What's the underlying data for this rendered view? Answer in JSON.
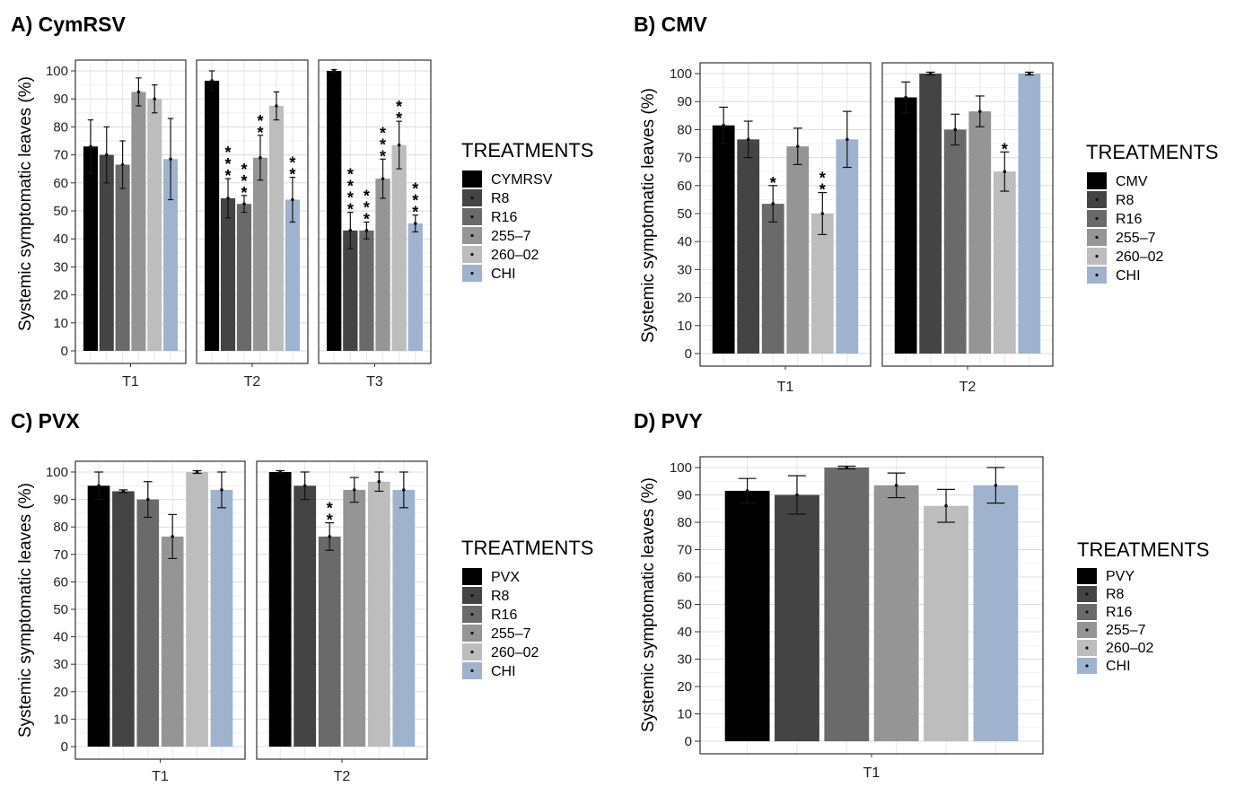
{
  "chart_data": [
    {
      "type": "bar",
      "panel_title": "A) CymRSV",
      "ylabel": "Systemic symptomatic leaves (%)",
      "ylim": [
        0,
        100
      ],
      "yticks": [
        0,
        10,
        20,
        30,
        40,
        50,
        60,
        70,
        80,
        90,
        100
      ],
      "legend_title": "TREATMENTS",
      "legend_placement": "right",
      "grid": true,
      "categories": [
        "CYMRSV",
        "R8",
        "R16",
        "255–7",
        "260–02",
        "CHI"
      ],
      "colors": [
        "#000000",
        "#444444",
        "#6a6a6a",
        "#959595",
        "#bdbdbd",
        "#9fb3cf"
      ],
      "facets": [
        {
          "label": "T1",
          "values": [
            73,
            70,
            66.5,
            92.5,
            90,
            68.5
          ],
          "errors": [
            9.5,
            10,
            8.5,
            5,
            5,
            14.5
          ],
          "stars": [
            0,
            0,
            0,
            0,
            0,
            0
          ]
        },
        {
          "label": "T2",
          "values": [
            96.5,
            54.5,
            52.5,
            69,
            87.5,
            54
          ],
          "errors": [
            3.5,
            7,
            3,
            8,
            5,
            8
          ],
          "stars": [
            0,
            3,
            3,
            2,
            0,
            2
          ]
        },
        {
          "label": "T3",
          "values": [
            100,
            43,
            43,
            61.5,
            73.5,
            45.5
          ],
          "errors": [
            0.5,
            6.5,
            3,
            7,
            8.5,
            3
          ],
          "stars": [
            0,
            4,
            3,
            3,
            2,
            3
          ]
        }
      ]
    },
    {
      "type": "bar",
      "panel_title": "B) CMV",
      "ylabel": "Systemic symptomatic leaves (%)",
      "ylim": [
        0,
        100
      ],
      "yticks": [
        0,
        10,
        20,
        30,
        40,
        50,
        60,
        70,
        80,
        90,
        100
      ],
      "legend_title": "TREATMENTS",
      "legend_placement": "right",
      "grid": true,
      "categories": [
        "CMV",
        "R8",
        "R16",
        "255–7",
        "260–02",
        "CHI"
      ],
      "colors": [
        "#000000",
        "#444444",
        "#6a6a6a",
        "#959595",
        "#bdbdbd",
        "#9fb3cf"
      ],
      "facets": [
        {
          "label": "T1",
          "values": [
            81.5,
            76.5,
            53.5,
            74,
            50,
            76.5
          ],
          "errors": [
            6.5,
            6.5,
            6.5,
            6.5,
            7.5,
            10
          ],
          "stars": [
            0,
            0,
            1,
            0,
            2,
            0
          ]
        },
        {
          "label": "T2",
          "values": [
            91.5,
            100,
            80,
            86.5,
            65,
            100
          ],
          "errors": [
            5.5,
            0.5,
            5.5,
            5.5,
            7,
            0.5
          ],
          "stars": [
            0,
            0,
            0,
            0,
            1,
            0
          ]
        }
      ]
    },
    {
      "type": "bar",
      "panel_title": "C) PVX",
      "ylabel": "Systemic symptomatic leaves (%)",
      "ylim": [
        0,
        100
      ],
      "yticks": [
        0,
        10,
        20,
        30,
        40,
        50,
        60,
        70,
        80,
        90,
        100
      ],
      "legend_title": "TREATMENTS",
      "legend_placement": "right",
      "grid": true,
      "categories": [
        "PVX",
        "R8",
        "R16",
        "255–7",
        "260–02",
        "CHI"
      ],
      "colors": [
        "#000000",
        "#444444",
        "#6a6a6a",
        "#959595",
        "#bdbdbd",
        "#9fb3cf"
      ],
      "facets": [
        {
          "label": "T1",
          "values": [
            95,
            93,
            90,
            76.5,
            100,
            93.5
          ],
          "errors": [
            5,
            0.5,
            6.5,
            8,
            0.5,
            6.5
          ],
          "stars": [
            0,
            0,
            0,
            0,
            0,
            0
          ]
        },
        {
          "label": "T2",
          "values": [
            100,
            95,
            76.5,
            93.5,
            96.5,
            93.5
          ],
          "errors": [
            0.5,
            5,
            5,
            4.5,
            3.5,
            6.5
          ],
          "stars": [
            0,
            0,
            2,
            0,
            0,
            0
          ]
        }
      ]
    },
    {
      "type": "bar",
      "panel_title": "D) PVY",
      "ylabel": "Systemic symptomatic leaves (%)",
      "ylim": [
        0,
        100
      ],
      "yticks": [
        0,
        10,
        20,
        30,
        40,
        50,
        60,
        70,
        80,
        90,
        100
      ],
      "legend_title": "TREATMENTS",
      "legend_placement": "right",
      "grid": true,
      "categories": [
        "PVY",
        "R8",
        "R16",
        "255–7",
        "260–02",
        "CHI"
      ],
      "colors": [
        "#000000",
        "#444444",
        "#6a6a6a",
        "#959595",
        "#bdbdbd",
        "#9fb3cf"
      ],
      "facets": [
        {
          "label": "T1",
          "values": [
            91.5,
            90,
            100,
            93.5,
            86,
            93.5
          ],
          "errors": [
            4.5,
            7,
            0.5,
            4.5,
            6,
            6.5
          ],
          "stars": [
            0,
            0,
            0,
            0,
            0,
            0
          ]
        }
      ]
    }
  ]
}
